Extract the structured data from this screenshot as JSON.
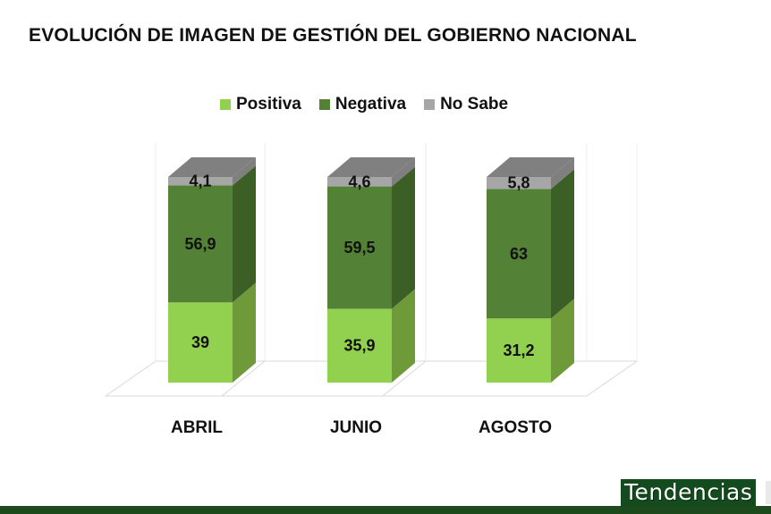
{
  "title": "EVOLUCIÓN DE IMAGEN DE GESTIÓN DEL GOBIERNO NACIONAL",
  "brand": "Tendencias",
  "colors": {
    "positiva": "#92d050",
    "negativa": "#538135",
    "no_sabe": "#a6a6a6"
  },
  "chart_data": {
    "type": "bar",
    "stacked": true,
    "title": "EVOLUCIÓN DE IMAGEN DE GESTIÓN DEL GOBIERNO NACIONAL",
    "categories": [
      "ABRIL",
      "JUNIO",
      "AGOSTO"
    ],
    "series": [
      {
        "name": "Positiva",
        "values": [
          39,
          35.9,
          31.2
        ],
        "labels": [
          "39",
          "35,9",
          "31,2"
        ]
      },
      {
        "name": "Negativa",
        "values": [
          56.9,
          59.5,
          63
        ],
        "labels": [
          "56,9",
          "59,5",
          "63"
        ]
      },
      {
        "name": "No Sabe",
        "values": [
          4.1,
          4.6,
          5.8
        ],
        "labels": [
          "4,1",
          "4,6",
          "5,8"
        ]
      }
    ],
    "ylim": [
      0,
      100
    ],
    "legend": "top",
    "grid": false
  }
}
